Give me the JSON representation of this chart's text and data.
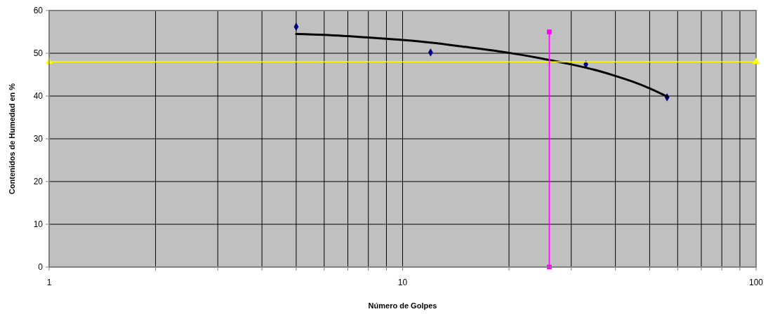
{
  "chart_data": {
    "type": "scatter",
    "xlabel": "Número de Golpes",
    "ylabel": "Contenidos de Humedad en %",
    "log": "x",
    "grid": true,
    "xlim": [
      1,
      100
    ],
    "xticks": [
      1,
      {
        "value": 2,
        "label": null
      },
      {
        "value": 3,
        "label": null
      },
      {
        "value": 4,
        "label": null
      },
      {
        "value": 5,
        "label": null
      },
      {
        "value": 6,
        "label": null
      },
      {
        "value": 7,
        "label": null
      },
      {
        "value": 8,
        "label": null
      },
      {
        "value": 9,
        "label": null
      },
      10,
      {
        "value": 20,
        "label": null
      },
      {
        "value": 30,
        "label": null
      },
      {
        "value": 40,
        "label": null
      },
      {
        "value": 50,
        "label": null
      },
      {
        "value": 60,
        "label": null
      },
      {
        "value": 70,
        "label": null
      },
      {
        "value": 80,
        "label": null
      },
      {
        "value": 90,
        "label": null
      },
      100
    ],
    "ylim": [
      0,
      60
    ],
    "yticks": [
      0,
      10,
      20,
      30,
      40,
      50,
      60
    ],
    "series": [
      {
        "color": "#000080",
        "marker": "diamond",
        "x": [
          5,
          12,
          33,
          56
        ],
        "values": [
          56.2,
          50.2,
          47.4,
          39.7
        ]
      },
      {
        "type": "line",
        "color": "#000000",
        "marker": "none",
        "x": [
          5,
          6,
          7,
          8,
          10,
          12,
          15,
          20,
          25,
          30,
          35,
          40,
          45,
          50,
          56
        ],
        "values": [
          54.5,
          54.3,
          54.0,
          53.7,
          53.1,
          52.5,
          51.5,
          50.1,
          48.7,
          47.4,
          46.1,
          44.7,
          43.3,
          41.8,
          39.9
        ]
      },
      {
        "type": "line",
        "color": "#ffff00",
        "marker": "triangle",
        "x": [
          1,
          100
        ],
        "values": [
          48,
          48
        ]
      },
      {
        "type": "line",
        "color": "#ff00ff",
        "marker": "square",
        "x": [
          26,
          26
        ],
        "values": [
          0,
          55
        ]
      }
    ]
  }
}
